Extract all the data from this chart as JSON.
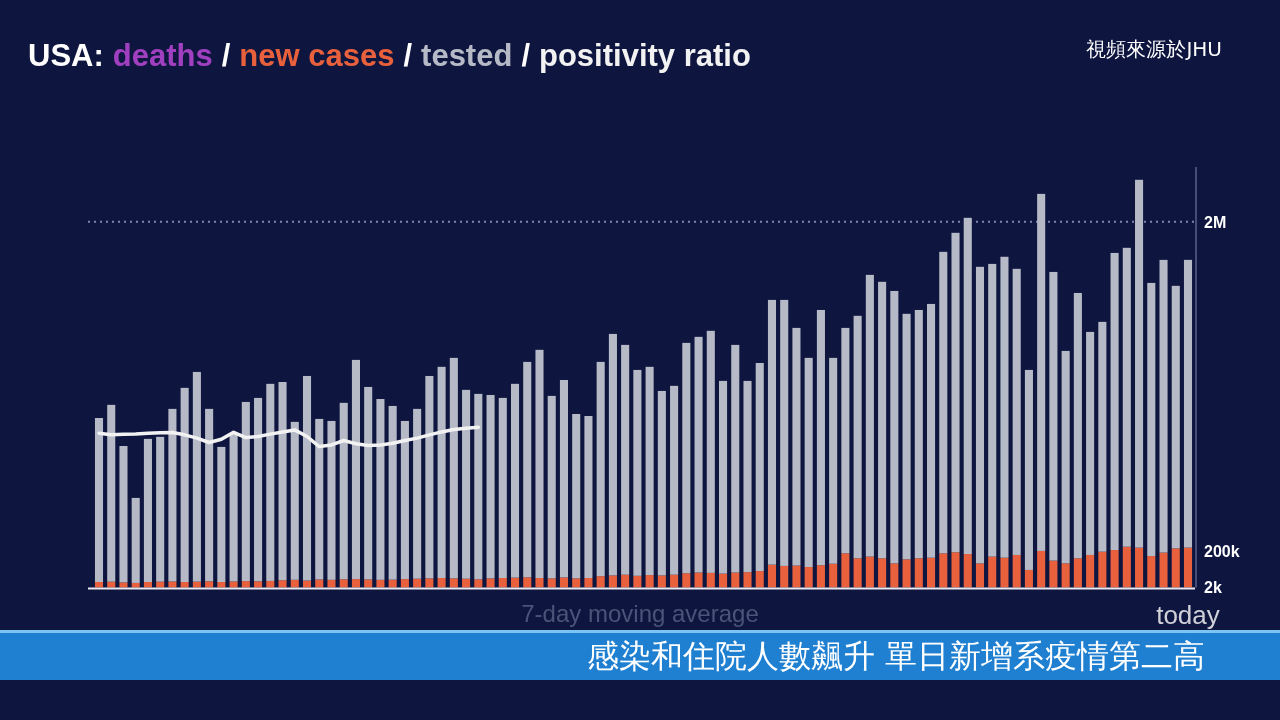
{
  "chart_data": {
    "type": "bar",
    "title": "USA:",
    "stacked": true,
    "legend": "top",
    "categories": [
      null,
      null,
      null,
      null,
      null,
      null,
      null,
      null,
      null,
      null,
      null,
      null,
      null,
      null,
      null,
      null,
      null,
      null,
      null,
      null,
      null,
      null,
      null,
      null,
      null,
      null,
      null,
      null,
      null,
      null,
      null,
      null,
      null,
      null,
      null,
      null,
      null,
      null,
      null,
      null,
      null,
      null,
      null,
      null,
      null,
      null,
      null,
      null,
      null,
      null,
      null,
      null,
      null,
      null,
      null,
      null,
      null,
      null,
      null,
      null,
      null,
      null,
      null,
      null,
      null,
      null,
      null,
      null,
      null,
      null,
      null,
      null,
      null,
      null,
      null,
      null,
      null,
      null,
      null,
      null,
      null,
      null,
      null,
      null,
      null,
      null,
      null,
      null,
      null,
      "today"
    ],
    "ylim": [
      0,
      2300000
    ],
    "yticks": [
      {
        "value": 2000,
        "label": "2k"
      },
      {
        "value": 200000,
        "label": "200k"
      },
      {
        "value": 2000000,
        "label": "2M"
      }
    ],
    "ref_lines": [
      {
        "axis": "y",
        "value": 2000000,
        "line_style": "dotted",
        "color": "#7f86a8"
      }
    ],
    "annotations": [
      "視頻來源於JHU",
      "7-day moving average",
      "感染和住院人數飆升  單日新增系疫情第二高",
      "/",
      "/",
      "/"
    ],
    "series": [
      {
        "name": "deaths",
        "type": "line",
        "color": "#a040c0",
        "values": [
          null,
          null,
          null,
          null,
          null,
          null,
          null,
          null,
          null,
          null,
          null,
          null,
          null,
          null,
          null,
          null,
          null,
          null,
          null,
          null,
          null,
          null,
          null,
          null,
          null,
          null,
          null,
          null,
          null,
          null,
          null,
          null,
          null,
          null,
          null,
          null,
          null,
          null,
          null,
          null,
          null,
          null,
          null,
          null,
          null,
          null,
          null,
          null,
          null,
          null,
          null,
          null,
          null,
          null,
          null,
          null,
          null,
          null,
          null,
          null,
          null,
          null,
          null,
          null,
          null,
          null,
          null,
          null,
          null,
          null,
          null,
          null,
          null,
          null,
          null,
          null,
          null,
          null,
          null,
          null,
          null,
          null,
          null,
          null,
          null,
          null,
          null,
          null,
          null,
          null
        ]
      },
      {
        "name": "new cases",
        "color": "#e8603c",
        "values": [
          30000,
          32000,
          28000,
          25000,
          30000,
          32000,
          33000,
          30000,
          32000,
          34000,
          30000,
          33000,
          35000,
          34000,
          36000,
          40000,
          42000,
          38000,
          44000,
          42000,
          45000,
          46000,
          44000,
          42000,
          43000,
          46000,
          48000,
          50000,
          52000,
          50000,
          48000,
          45000,
          50000,
          52000,
          54000,
          56000,
          52000,
          50000,
          55000,
          50000,
          52000,
          62000,
          66000,
          70000,
          64000,
          68000,
          66000,
          70000,
          78000,
          82000,
          80000,
          76000,
          82000,
          84000,
          90000,
          125000,
          118000,
          120000,
          112000,
          122000,
          130000,
          187000,
          160000,
          169000,
          160000,
          132000,
          154000,
          160000,
          163000,
          187000,
          193000,
          183000,
          132000,
          169000,
          163000,
          178000,
          96000,
          200000,
          147000,
          132000,
          160000,
          178000,
          196000,
          205000,
          223000,
          218000,
          172000,
          191000,
          214000,
          218000
        ]
      },
      {
        "name": "tested",
        "color": "#b6bac6",
        "values": [
          897000,
          967000,
          746000,
          465000,
          783000,
          792000,
          944000,
          1062000,
          1147000,
          943000,
          739000,
          812000,
          980000,
          1003000,
          1078000,
          1084000,
          864000,
          1119000,
          878000,
          869000,
          965000,
          1199000,
          1053000,
          989000,
          950000,
          865000,
          929000,
          1107000,
          1155000,
          1206000,
          1033000,
          1014000,
          1003000,
          985000,
          1060000,
          1178000,
          1248000,
          998000,
          1080000,
          899000,
          886000,
          1172000,
          1321000,
          1257000,
          1126000,
          1139000,
          1009000,
          1033000,
          1260000,
          1289000,
          1324000,
          1054000,
          1245000,
          1046000,
          1138000,
          1448000,
          1455000,
          1300000,
          1144000,
          1396000,
          1126000,
          1233000,
          1326000,
          1541000,
          1512000,
          1490000,
          1343000,
          1358000,
          1388000,
          1649000,
          1747000,
          1839000,
          1622000,
          1601000,
          1646000,
          1565000,
          1094000,
          1953000,
          1579000,
          1162000,
          1451000,
          1220000,
          1257000,
          1625000,
          1635000,
          2012000,
          1494000,
          1601000,
          1436000,
          1574000
        ]
      },
      {
        "name": "positivity ratio",
        "type": "line",
        "color": "#f2f2f2",
        "values": [
          844000,
          835000,
          838000,
          840000,
          844000,
          846000,
          848000,
          835000,
          817000,
          793000,
          811000,
          849000,
          820000,
          826000,
          839000,
          851000,
          862000,
          826000,
          771000,
          780000,
          804000,
          786000,
          777000,
          779000,
          789000,
          804000,
          817000,
          835000,
          851000,
          864000,
          871000,
          877000,
          null,
          null,
          null,
          null,
          null,
          null,
          null,
          null,
          null,
          null,
          null,
          null,
          null,
          null,
          null,
          null,
          null,
          null,
          null,
          null,
          null,
          null,
          null,
          null,
          null,
          null,
          null,
          null,
          null,
          null,
          null,
          null,
          null,
          null,
          null,
          null,
          null,
          null,
          null,
          null,
          null,
          null,
          null,
          null,
          null,
          null,
          null,
          null,
          null,
          null,
          null,
          null,
          null,
          null,
          null,
          null,
          null,
          null
        ]
      }
    ]
  }
}
